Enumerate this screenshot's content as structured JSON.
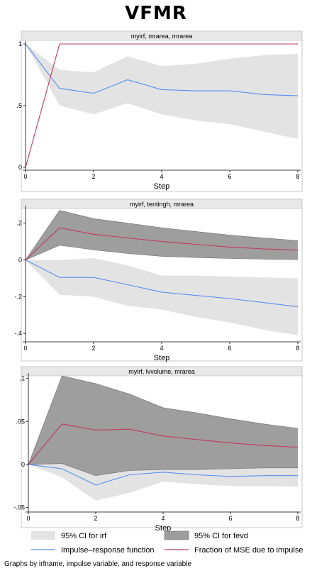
{
  "title": "VFMR",
  "note": "Graphs by irfname, impulse variable, and response variable",
  "colors": {
    "irf_ci": "#e3e3e3",
    "fevd_ci": "#9e9e9e",
    "irf_line": "#5b8def",
    "fevd_line": "#c03b5e",
    "strip": "#e8e8e8"
  },
  "legend": [
    {
      "label": "95% CI for irf",
      "kind": "box",
      "color_key": "irf_ci"
    },
    {
      "label": "95% CI for fevd",
      "kind": "box",
      "color_key": "fevd_ci"
    },
    {
      "label": "Impulse–response function",
      "kind": "line",
      "color_key": "irf_line"
    },
    {
      "label": "Fraction of MSE due to impulse",
      "kind": "line",
      "color_key": "fevd_line"
    }
  ],
  "chart_data": [
    {
      "type": "line",
      "strip_title": "myirf, mrarea, mrarea",
      "xlabel": "Step",
      "x": [
        0,
        1,
        2,
        3,
        4,
        5,
        6,
        7,
        8
      ],
      "xticks": [
        0,
        2,
        4,
        6,
        8
      ],
      "xlim": [
        0,
        8
      ],
      "ylim": [
        0,
        1
      ],
      "yticks": [
        0,
        0.5,
        1
      ],
      "yticklabels": [
        "0",
        ".5",
        "1"
      ],
      "irf": [
        1,
        0.64,
        0.6,
        0.71,
        0.63,
        0.62,
        0.62,
        0.59,
        0.58
      ],
      "irf_ci_lower": [
        1,
        0.5,
        0.43,
        0.52,
        0.43,
        0.38,
        0.35,
        0.29,
        0.23
      ],
      "irf_ci_upper": [
        1,
        0.79,
        0.77,
        0.9,
        0.82,
        0.84,
        0.88,
        0.91,
        0.92
      ],
      "fevd": [
        0,
        1,
        1,
        1,
        1,
        1,
        1,
        1,
        1
      ],
      "fevd_ci_lower": null,
      "fevd_ci_upper": null
    },
    {
      "type": "line",
      "strip_title": "myirf, tentingh, mrarea",
      "xlabel": "Step",
      "x": [
        0,
        1,
        2,
        3,
        4,
        5,
        6,
        7,
        8
      ],
      "xticks": [
        0,
        2,
        4,
        6,
        8
      ],
      "xlim": [
        0,
        8
      ],
      "ylim": [
        -0.43,
        0.28
      ],
      "yticks": [
        -0.4,
        -0.2,
        0,
        0.2
      ],
      "yticklabels": [
        "-.4",
        "-.2",
        "0",
        ".2"
      ],
      "irf": [
        0,
        -0.095,
        -0.095,
        -0.135,
        -0.175,
        -0.193,
        -0.21,
        -0.232,
        -0.255
      ],
      "irf_ci_lower": [
        0,
        -0.19,
        -0.2,
        -0.25,
        -0.27,
        -0.31,
        -0.34,
        -0.38,
        -0.41
      ],
      "irf_ci_upper": [
        0,
        0.0,
        0.01,
        -0.03,
        -0.085,
        -0.085,
        -0.09,
        -0.095,
        -0.1
      ],
      "fevd": [
        0,
        0.175,
        0.14,
        0.12,
        0.1,
        0.085,
        0.07,
        0.06,
        0.053
      ],
      "fevd_ci_lower": [
        0,
        0.08,
        0.055,
        0.035,
        0.02,
        0.013,
        0.008,
        0.004,
        0.002
      ],
      "fevd_ci_upper": [
        0,
        0.27,
        0.225,
        0.2,
        0.175,
        0.155,
        0.135,
        0.12,
        0.105
      ]
    },
    {
      "type": "line",
      "strip_title": "myirf, lvvolume, mrarea",
      "xlabel": "Step",
      "x": [
        0,
        1,
        2,
        3,
        4,
        5,
        6,
        7,
        8
      ],
      "xticks": [
        0,
        2,
        4,
        6,
        8
      ],
      "xlim": [
        0,
        8
      ],
      "ylim": [
        -0.052,
        0.103
      ],
      "yticks": [
        -0.05,
        0,
        0.05,
        0.1
      ],
      "yticklabels": [
        "-.05",
        "0",
        ".05",
        ".1"
      ],
      "irf": [
        0,
        -0.005,
        -0.024,
        -0.012,
        -0.009,
        -0.012,
        -0.014,
        -0.013,
        -0.013
      ],
      "irf_ci_lower": [
        0,
        -0.015,
        -0.042,
        -0.033,
        -0.02,
        -0.023,
        -0.025,
        -0.025,
        -0.026
      ],
      "irf_ci_upper": [
        0,
        0.01,
        -0.005,
        0.01,
        0.003,
        -0.001,
        -0.003,
        -0.001,
        0.0
      ],
      "fevd": [
        0,
        0.047,
        0.04,
        0.041,
        0.033,
        0.029,
        0.025,
        0.022,
        0.02
      ],
      "fevd_ci_lower": [
        0,
        0.001,
        -0.013,
        -0.007,
        -0.006,
        -0.006,
        -0.005,
        -0.004,
        -0.004
      ],
      "fevd_ci_upper": [
        0,
        0.103,
        0.094,
        0.082,
        0.066,
        0.06,
        0.053,
        0.047,
        0.042
      ]
    }
  ]
}
